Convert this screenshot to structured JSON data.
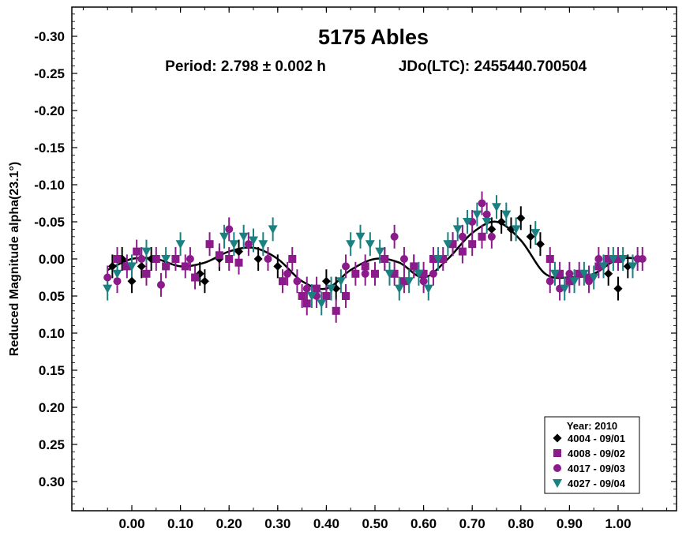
{
  "chart_data": {
    "type": "scatter",
    "title": "5175 Ables",
    "subtitle_period": "Period: 2.798 ± 0.002 h",
    "subtitle_epoch": "JDo(LTC): 2455440.700504",
    "ylabel": "Reduced Magnitude alpha(23.1°)",
    "xlabel": "",
    "xlim": [
      -0.12,
      1.12
    ],
    "ylim": [
      -0.34,
      0.34
    ],
    "y_inverted": true,
    "x_ticks": [
      "0.00",
      "0.10",
      "0.20",
      "0.30",
      "0.40",
      "0.50",
      "0.60",
      "0.70",
      "0.80",
      "0.90",
      "1.00"
    ],
    "y_ticks": [
      "-0.30",
      "-0.25",
      "-0.20",
      "-0.15",
      "-0.10",
      "-0.05",
      "0.00",
      "0.05",
      "0.10",
      "0.15",
      "0.20",
      "0.25",
      "0.30"
    ],
    "grid": false,
    "legend_placement": "bottom-right",
    "legend_title": "Year: 2010",
    "fit_curve": {
      "x": [
        -0.05,
        0.0,
        0.05,
        0.1,
        0.15,
        0.2,
        0.25,
        0.3,
        0.35,
        0.4,
        0.45,
        0.5,
        0.55,
        0.6,
        0.65,
        0.7,
        0.75,
        0.8,
        0.85,
        0.9,
        0.95,
        1.0,
        1.05
      ],
      "y": [
        0.015,
        0.0,
        0.0,
        0.01,
        0.005,
        -0.01,
        -0.015,
        0.0,
        0.03,
        0.04,
        0.015,
        0.0,
        0.005,
        0.025,
        0.0,
        -0.035,
        -0.05,
        -0.025,
        0.02,
        0.025,
        0.02,
        0.0,
        0.0
      ]
    },
    "series": [
      {
        "name": "4004 - 09/01",
        "marker": "diamond",
        "color": "#000000",
        "x": [
          -0.04,
          -0.02,
          0.0,
          0.02,
          0.04,
          0.14,
          0.15,
          0.18,
          0.22,
          0.26,
          0.3,
          0.4,
          0.42,
          0.74,
          0.76,
          0.78,
          0.8,
          0.82,
          0.84,
          0.98,
          1.0,
          1.02
        ],
        "y": [
          0.01,
          0.0,
          0.03,
          0.01,
          0.0,
          0.02,
          0.03,
          0.0,
          -0.01,
          0.0,
          0.01,
          0.03,
          0.04,
          -0.04,
          -0.05,
          -0.04,
          -0.055,
          -0.03,
          -0.02,
          0.02,
          0.04,
          0.01
        ]
      },
      {
        "name": "4008 - 09/02",
        "marker": "square",
        "color": "#8B1A8B",
        "x": [
          -0.03,
          -0.01,
          0.01,
          0.03,
          0.05,
          0.07,
          0.09,
          0.11,
          0.13,
          0.16,
          0.18,
          0.2,
          0.22,
          0.31,
          0.33,
          0.35,
          0.36,
          0.38,
          0.4,
          0.42,
          0.44,
          0.46,
          0.48,
          0.5,
          0.52,
          0.54,
          0.56,
          0.58,
          0.6,
          0.62,
          0.64,
          0.66,
          0.68,
          0.7,
          0.72,
          0.86,
          0.88,
          0.9,
          0.92,
          0.94,
          0.96,
          0.98,
          1.0
        ],
        "y": [
          0.0,
          0.01,
          -0.01,
          0.02,
          0.0,
          0.01,
          0.0,
          0.01,
          0.025,
          -0.02,
          -0.005,
          0.0,
          0.005,
          0.03,
          0.0,
          0.05,
          0.06,
          0.04,
          0.05,
          0.07,
          0.05,
          0.02,
          0.01,
          0.02,
          0.0,
          0.02,
          0.03,
          0.01,
          0.02,
          0.0,
          0.0,
          -0.02,
          -0.01,
          -0.02,
          -0.03,
          0.0,
          0.02,
          0.03,
          0.02,
          0.025,
          0.01,
          0.0,
          0.0
        ]
      },
      {
        "name": "4017 - 09/03",
        "marker": "circle",
        "color": "#8B1A8B",
        "x": [
          -0.05,
          -0.03,
          0.02,
          0.06,
          0.12,
          0.2,
          0.24,
          0.28,
          0.32,
          0.34,
          0.36,
          0.38,
          0.44,
          0.48,
          0.52,
          0.54,
          0.56,
          0.58,
          0.6,
          0.62,
          0.66,
          0.68,
          0.7,
          0.72,
          0.73,
          0.74,
          0.86,
          0.88,
          0.9,
          0.94,
          0.96,
          1.04,
          1.05
        ],
        "y": [
          0.025,
          0.03,
          0.0,
          0.035,
          0.0,
          -0.04,
          -0.02,
          0.0,
          0.02,
          0.03,
          0.04,
          0.05,
          0.01,
          0.02,
          0.0,
          -0.03,
          0.0,
          0.01,
          0.03,
          0.02,
          -0.02,
          -0.03,
          -0.05,
          -0.075,
          -0.06,
          -0.03,
          0.03,
          0.04,
          0.02,
          0.03,
          0.0,
          0.0,
          0.0
        ]
      },
      {
        "name": "4027 - 09/04",
        "marker": "triangle-down",
        "color": "#1A8080",
        "x": [
          -0.05,
          -0.03,
          0.0,
          0.03,
          0.07,
          0.1,
          0.19,
          0.21,
          0.23,
          0.25,
          0.27,
          0.29,
          0.37,
          0.39,
          0.41,
          0.43,
          0.45,
          0.47,
          0.49,
          0.51,
          0.53,
          0.55,
          0.57,
          0.59,
          0.61,
          0.63,
          0.65,
          0.67,
          0.69,
          0.71,
          0.73,
          0.75,
          0.77,
          0.79,
          0.83,
          0.87,
          0.89,
          0.91,
          0.93,
          0.95,
          0.97,
          0.99,
          1.01,
          1.03
        ],
        "y": [
          0.04,
          0.02,
          0.01,
          -0.01,
          0.0,
          -0.02,
          -0.03,
          -0.02,
          -0.03,
          -0.025,
          -0.02,
          -0.04,
          0.05,
          0.06,
          0.04,
          0.03,
          -0.02,
          -0.03,
          -0.02,
          -0.01,
          0.02,
          0.04,
          0.03,
          0.02,
          0.04,
          0.0,
          -0.02,
          -0.04,
          -0.05,
          -0.06,
          -0.05,
          -0.07,
          -0.06,
          -0.04,
          -0.035,
          0.02,
          0.04,
          0.03,
          0.02,
          0.025,
          0.01,
          0.0,
          0.0,
          0.01
        ]
      }
    ]
  }
}
